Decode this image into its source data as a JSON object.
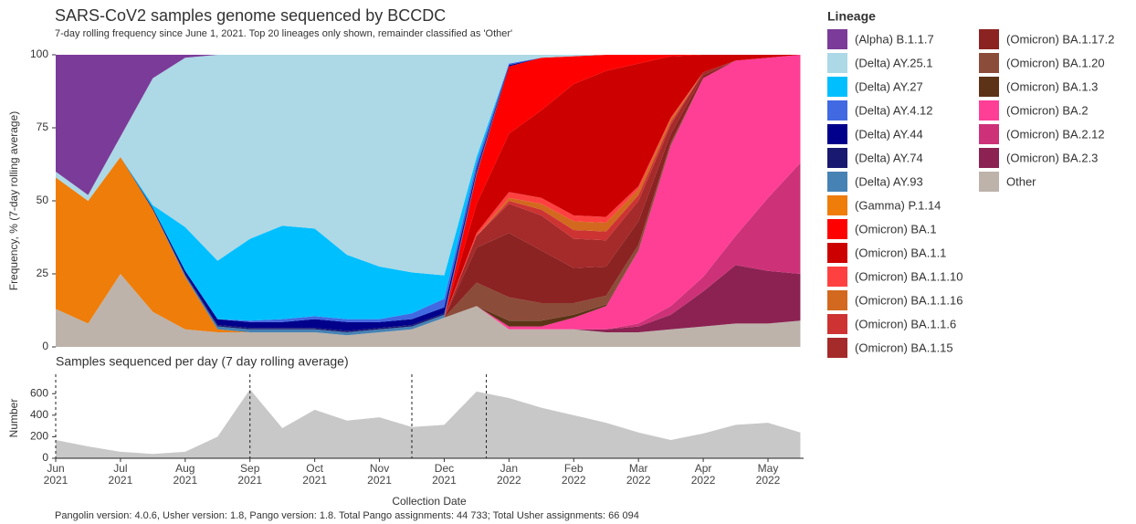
{
  "chart_data": [
    {
      "type": "stacked_area",
      "title": "SARS-CoV2 samples genome sequenced by BCCDC",
      "subtitle": "7-day rolling frequency since June 1, 2021.  Top 20 lineages only shown, remainder classified as 'Other'",
      "ylabel": "Frequency, % (7-day rolling average)",
      "legend_title": "Lineage",
      "x": [
        0,
        0.5,
        1,
        1.5,
        2,
        2.5,
        3,
        3.5,
        4,
        4.5,
        5,
        5.5,
        6,
        6.5,
        7,
        7.5,
        8,
        8.5,
        9,
        9.5,
        10,
        10.5,
        11,
        11.5
      ],
      "xlim": [
        0,
        11.55
      ],
      "ylim": [
        0,
        100
      ],
      "yticks": [
        0,
        25,
        50,
        75,
        100
      ],
      "series": [
        {
          "name": "(Alpha) B.1.1.7",
          "color": "#7b3b98",
          "values": [
            40,
            48,
            28,
            8,
            1,
            0,
            0,
            0,
            0,
            0,
            0,
            0,
            0,
            0,
            0,
            0,
            0,
            0,
            0,
            0,
            0,
            0,
            0,
            0
          ]
        },
        {
          "name": "(Delta) AY.25.1",
          "color": "#add8e6",
          "values": [
            2,
            2,
            7,
            43.5,
            58,
            70.5,
            63,
            58.5,
            59.5,
            68.5,
            72.5,
            74.5,
            75.5,
            35,
            3,
            1,
            0.5,
            0,
            0,
            0,
            0,
            0,
            0,
            0
          ]
        },
        {
          "name": "(Delta) AY.27",
          "color": "#00bfff",
          "values": [
            0,
            0,
            0,
            1,
            15,
            20,
            28,
            32,
            30,
            22,
            18,
            14,
            8,
            2,
            0,
            0,
            0,
            0,
            0,
            0,
            0,
            0,
            0,
            0
          ]
        },
        {
          "name": "(Delta) AY.4.12",
          "color": "#4169e1",
          "values": [
            0,
            0,
            0,
            0,
            0,
            0,
            0.5,
            1,
            1,
            1,
            1,
            2,
            3,
            2,
            0.5,
            0,
            0,
            0,
            0,
            0,
            0,
            0,
            0,
            0
          ]
        },
        {
          "name": "(Delta) AY.44",
          "color": "#00008b",
          "values": [
            0,
            0,
            0,
            0.5,
            1,
            2,
            2,
            2,
            3,
            3,
            2,
            2,
            2,
            1,
            0.5,
            0,
            0,
            0,
            0,
            0,
            0,
            0,
            0,
            0
          ]
        },
        {
          "name": "(Delta) AY.74",
          "color": "#191970",
          "values": [
            0,
            0,
            0,
            0,
            0.5,
            0.5,
            0.5,
            0.5,
            0.5,
            0.5,
            0.5,
            0.5,
            0.5,
            0.5,
            0,
            0,
            0,
            0,
            0,
            0,
            0,
            0,
            0,
            0
          ]
        },
        {
          "name": "(Delta) AY.93",
          "color": "#4682b4",
          "values": [
            0,
            0,
            0,
            0,
            0.5,
            1,
            1,
            1,
            1,
            1,
            1,
            1,
            1,
            0.5,
            0,
            0,
            0,
            0,
            0,
            0,
            0,
            0,
            0,
            0
          ]
        },
        {
          "name": "(Gamma) P.1.14",
          "color": "#ee7d0a",
          "values": [
            45,
            42,
            40,
            35,
            18,
            1,
            0,
            0,
            0,
            0,
            0,
            0,
            0,
            0,
            0,
            0,
            0,
            0,
            0,
            0,
            0,
            0,
            0,
            0
          ]
        },
        {
          "name": "(Omicron) BA.1",
          "color": "#ff0000",
          "values": [
            0,
            0,
            0,
            0,
            0,
            0,
            0,
            0,
            0,
            0,
            0,
            0,
            0,
            10,
            23,
            18,
            9.5,
            5.5,
            3,
            0.5,
            0,
            0,
            0,
            0
          ]
        },
        {
          "name": "(Omicron) BA.1.1",
          "color": "#cd0000",
          "values": [
            0,
            0,
            0,
            0,
            0,
            0,
            0,
            0,
            0,
            0,
            0,
            0,
            0,
            10,
            20,
            30,
            45,
            50,
            42,
            21,
            6,
            2,
            1,
            0
          ]
        },
        {
          "name": "(Omicron) BA.1.1.10",
          "color": "#ff4040",
          "values": [
            0,
            0,
            0,
            0,
            0,
            0,
            0,
            0,
            0,
            0,
            0,
            0,
            0,
            1,
            2,
            2,
            2,
            2,
            1,
            0.5,
            0,
            0,
            0,
            0
          ]
        },
        {
          "name": "(Omicron) BA.1.1.16",
          "color": "#d2691e",
          "values": [
            0,
            0,
            0,
            0,
            0,
            0,
            0,
            0,
            0,
            0,
            0,
            0,
            0,
            0,
            1,
            2,
            3,
            3,
            2,
            1,
            0,
            0,
            0,
            0
          ]
        },
        {
          "name": "(Omicron) BA.1.1.6",
          "color": "#cd3333",
          "values": [
            0,
            0,
            0,
            0,
            0,
            0,
            0,
            0,
            0,
            0,
            0,
            0,
            0,
            0,
            1,
            2,
            3,
            3,
            2,
            1,
            0,
            0,
            0,
            0
          ]
        },
        {
          "name": "(Omicron) BA.1.15",
          "color": "#a52a2a",
          "values": [
            0,
            0,
            0,
            0,
            0,
            0,
            0,
            0,
            0,
            0,
            0,
            0,
            0,
            4,
            10,
            12,
            10,
            9,
            7,
            3,
            1,
            0,
            0,
            0
          ]
        },
        {
          "name": "(Omicron) BA.1.17.2",
          "color": "#8b2323",
          "values": [
            0,
            0,
            0,
            0,
            0,
            0,
            0,
            0,
            0,
            0,
            0,
            0,
            0,
            12,
            22,
            18,
            12,
            10,
            8,
            3,
            1,
            0,
            0,
            0
          ]
        },
        {
          "name": "(Omicron) BA.1.20",
          "color": "#8b4c39",
          "values": [
            0,
            0,
            0,
            0,
            0,
            0,
            0,
            0,
            0,
            0,
            0,
            0,
            0,
            8,
            8,
            6,
            4,
            3,
            2,
            1,
            0,
            0,
            0,
            0
          ]
        },
        {
          "name": "(Omicron) BA.1.3",
          "color": "#5c3317",
          "values": [
            0,
            0,
            0,
            0,
            0,
            0,
            0,
            0,
            0,
            0,
            0,
            0,
            0,
            0,
            2,
            2,
            1,
            0.5,
            0,
            0,
            0,
            0,
            0,
            0
          ]
        },
        {
          "name": "(Omicron) BA.2",
          "color": "#ff3e96",
          "values": [
            0,
            0,
            0,
            0,
            0,
            0,
            0,
            0,
            0,
            0,
            0,
            0,
            0,
            0,
            1,
            1,
            4,
            8,
            25,
            55,
            68,
            60,
            48,
            37
          ]
        },
        {
          "name": "(Omicron) BA.2.12",
          "color": "#cd3278",
          "values": [
            0,
            0,
            0,
            0,
            0,
            0,
            0,
            0,
            0,
            0,
            0,
            0,
            0,
            0,
            0,
            0,
            0,
            0,
            1,
            3,
            5,
            10,
            25,
            38
          ]
        },
        {
          "name": "(Omicron) BA.2.3",
          "color": "#8b2252",
          "values": [
            0,
            0,
            0,
            0,
            0,
            0,
            0,
            0,
            0,
            0,
            0,
            0,
            0,
            0,
            0,
            0,
            0,
            1,
            2,
            5,
            12,
            20,
            18,
            16
          ]
        },
        {
          "name": "Other",
          "color": "#bdb3ab",
          "values": [
            13,
            8,
            25,
            12,
            6,
            5,
            5,
            5,
            5,
            4,
            5,
            6,
            10,
            14,
            6,
            6,
            6,
            5,
            5,
            6,
            7,
            8,
            8,
            9
          ]
        }
      ]
    },
    {
      "type": "area",
      "title": "Samples sequenced per day (7 day rolling average)",
      "ylabel": "Number",
      "xlabel": "Collection Date",
      "caption": "Pangolin version: 4.0.6, Usher version: 1.8, Pango version: 1.8. Total Pango assignments: 44 733; Total Usher assignments: 66 094",
      "color": "#c8c8c8",
      "x": [
        0,
        0.5,
        1,
        1.5,
        2,
        2.5,
        3,
        3.5,
        4,
        4.5,
        5,
        5.5,
        6,
        6.5,
        7,
        7.5,
        8,
        8.5,
        9,
        9.5,
        10,
        10.5,
        11,
        11.5
      ],
      "values": [
        170,
        110,
        60,
        40,
        60,
        200,
        640,
        280,
        450,
        350,
        380,
        290,
        310,
        620,
        560,
        470,
        400,
        330,
        240,
        170,
        230,
        310,
        330,
        240
      ],
      "xlim": [
        0,
        11.55
      ],
      "ylim": [
        0,
        780
      ],
      "yticks": [
        0,
        200,
        400,
        600
      ],
      "vlines": [
        0,
        3,
        5.5,
        6.65
      ],
      "xticks": [
        {
          "value": 0,
          "label": "Jun\n2021"
        },
        {
          "value": 1,
          "label": "Jul\n2021"
        },
        {
          "value": 2,
          "label": "Aug\n2021"
        },
        {
          "value": 3,
          "label": "Sep\n2021"
        },
        {
          "value": 4,
          "label": "Oct\n2021"
        },
        {
          "value": 5,
          "label": "Nov\n2021"
        },
        {
          "value": 6,
          "label": "Dec\n2021"
        },
        {
          "value": 7,
          "label": "Jan\n2022"
        },
        {
          "value": 8,
          "label": "Feb\n2022"
        },
        {
          "value": 9,
          "label": "Mar\n2022"
        },
        {
          "value": 10,
          "label": "Apr\n2022"
        },
        {
          "value": 11,
          "label": "May\n2022"
        }
      ]
    }
  ]
}
